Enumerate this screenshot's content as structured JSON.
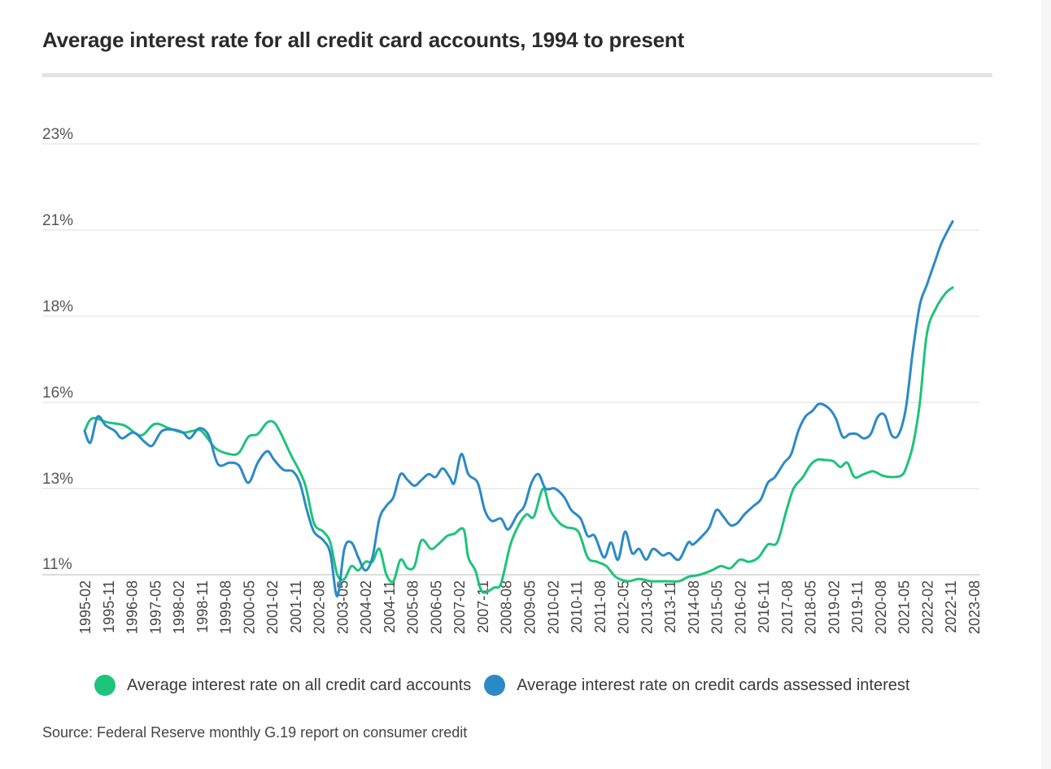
{
  "chart_data": {
    "type": "line",
    "title": "Average interest rate for all credit card accounts, 1994 to present",
    "source": "Source: Federal Reserve monthly G.19 report on consumer credit",
    "y_ticks": [
      {
        "value": 11,
        "label": "11%"
      },
      {
        "value": 13,
        "label": "13%"
      },
      {
        "value": 16,
        "label": "16%"
      },
      {
        "value": 18,
        "label": "18%"
      },
      {
        "value": 21,
        "label": "21%"
      },
      {
        "value": 23,
        "label": "23%"
      }
    ],
    "ylim": [
      11,
      23
    ],
    "x_tick_labels": [
      "1995-02",
      "1995-11",
      "1996-08",
      "1997-05",
      "1998-02",
      "1998-11",
      "1999-08",
      "2000-05",
      "2001-02",
      "2001-11",
      "2002-08",
      "2003-05",
      "2004-02",
      "2004-11",
      "2005-08",
      "2006-05",
      "2007-02",
      "2007-11",
      "2008-08",
      "2009-05",
      "2010-02",
      "2010-11",
      "2011-08",
      "2012-05",
      "2013-02",
      "2013-11",
      "2014-08",
      "2015-05",
      "2016-02",
      "2016-11",
      "2017-08",
      "2018-05",
      "2019-02",
      "2019-11",
      "2020-08",
      "2021-05",
      "2022-02",
      "2022-11",
      "2023-08"
    ],
    "grid": true,
    "legend_position": "bottom",
    "series": [
      {
        "name": "Average interest rate on all credit card accounts",
        "color": "#1dc47a",
        "values": [
          [
            0,
            15.0
          ],
          [
            0.2,
            15.35
          ],
          [
            0.45,
            15.45
          ],
          [
            1,
            15.3
          ],
          [
            1.7,
            15.2
          ],
          [
            2.4,
            14.85
          ],
          [
            3,
            15.25
          ],
          [
            3.6,
            15.1
          ],
          [
            4.2,
            14.95
          ],
          [
            4.6,
            15.0
          ],
          [
            5,
            15.0
          ],
          [
            5.6,
            14.4
          ],
          [
            6.2,
            14.2
          ],
          [
            6.6,
            14.25
          ],
          [
            7,
            14.8
          ],
          [
            7.4,
            14.9
          ],
          [
            7.8,
            15.3
          ],
          [
            8.1,
            15.3
          ],
          [
            8.4,
            14.9
          ],
          [
            8.8,
            14.2
          ],
          [
            9.4,
            13.2
          ],
          [
            9.8,
            12.2
          ],
          [
            10.2,
            12.0
          ],
          [
            10.5,
            11.75
          ],
          [
            10.8,
            11.0
          ],
          [
            11.1,
            10.9
          ],
          [
            11.4,
            11.2
          ],
          [
            11.7,
            11.1
          ],
          [
            12,
            11.3
          ],
          [
            12.3,
            11.3
          ],
          [
            12.6,
            11.6
          ],
          [
            12.9,
            11.0
          ],
          [
            13.2,
            10.85
          ],
          [
            13.5,
            11.35
          ],
          [
            13.8,
            11.15
          ],
          [
            14.1,
            11.2
          ],
          [
            14.4,
            11.8
          ],
          [
            14.8,
            11.6
          ],
          [
            15.1,
            11.7
          ],
          [
            15.5,
            11.9
          ],
          [
            15.8,
            11.95
          ],
          [
            16.2,
            12.05
          ],
          [
            16.4,
            11.4
          ],
          [
            16.7,
            11.1
          ],
          [
            17,
            10.6
          ],
          [
            17.5,
            10.7
          ],
          [
            17.8,
            10.8
          ],
          [
            18.2,
            11.7
          ],
          [
            18.6,
            12.2
          ],
          [
            18.9,
            12.4
          ],
          [
            19.2,
            12.35
          ],
          [
            19.6,
            13.0
          ],
          [
            19.9,
            12.5
          ],
          [
            20.3,
            12.2
          ],
          [
            20.6,
            12.1
          ],
          [
            21.1,
            12.0
          ],
          [
            21.5,
            11.4
          ],
          [
            21.9,
            11.3
          ],
          [
            22.3,
            11.2
          ],
          [
            22.7,
            10.95
          ],
          [
            23.2,
            10.85
          ],
          [
            23.7,
            10.9
          ],
          [
            24.2,
            10.85
          ],
          [
            24.8,
            10.85
          ],
          [
            25.4,
            10.85
          ],
          [
            25.8,
            10.95
          ],
          [
            26.3,
            11.0
          ],
          [
            26.8,
            11.1
          ],
          [
            27.2,
            11.2
          ],
          [
            27.6,
            11.15
          ],
          [
            28,
            11.35
          ],
          [
            28.4,
            11.3
          ],
          [
            28.8,
            11.4
          ],
          [
            29.2,
            11.7
          ],
          [
            29.6,
            11.75
          ],
          [
            30,
            12.5
          ],
          [
            30.3,
            13.0
          ],
          [
            30.7,
            13.4
          ],
          [
            31,
            13.8
          ],
          [
            31.3,
            14.0
          ],
          [
            31.6,
            14.0
          ],
          [
            32,
            13.95
          ],
          [
            32.3,
            13.75
          ],
          [
            32.6,
            13.9
          ],
          [
            32.9,
            13.4
          ],
          [
            33.3,
            13.5
          ],
          [
            33.7,
            13.6
          ],
          [
            34.1,
            13.45
          ],
          [
            34.5,
            13.4
          ],
          [
            34.9,
            13.45
          ],
          [
            35.1,
            13.7
          ],
          [
            35.4,
            14.5
          ],
          [
            35.7,
            16.0
          ],
          [
            36,
            17.6
          ],
          [
            36.4,
            18.3
          ],
          [
            36.8,
            18.8
          ],
          [
            37.1,
            19.0
          ]
        ]
      },
      {
        "name": "Average interest rate on credit cards assessed interest",
        "color": "#2b8ac6",
        "values": [
          [
            0,
            15.0
          ],
          [
            0.25,
            14.6
          ],
          [
            0.55,
            15.5
          ],
          [
            0.9,
            15.2
          ],
          [
            1.3,
            15.0
          ],
          [
            1.6,
            14.75
          ],
          [
            2.1,
            14.95
          ],
          [
            2.6,
            14.6
          ],
          [
            2.9,
            14.5
          ],
          [
            3.3,
            15.0
          ],
          [
            3.8,
            15.05
          ],
          [
            4.2,
            14.95
          ],
          [
            4.5,
            14.75
          ],
          [
            4.9,
            15.1
          ],
          [
            5.3,
            14.85
          ],
          [
            5.7,
            13.85
          ],
          [
            6.2,
            13.9
          ],
          [
            6.6,
            13.8
          ],
          [
            7,
            13.2
          ],
          [
            7.4,
            13.9
          ],
          [
            7.8,
            14.3
          ],
          [
            8.1,
            14.0
          ],
          [
            8.5,
            13.65
          ],
          [
            8.9,
            13.6
          ],
          [
            9.2,
            13.2
          ],
          [
            9.5,
            12.5
          ],
          [
            9.8,
            12.0
          ],
          [
            10.2,
            11.8
          ],
          [
            10.5,
            11.5
          ],
          [
            10.8,
            10.5
          ],
          [
            11.1,
            11.6
          ],
          [
            11.4,
            11.75
          ],
          [
            11.7,
            11.4
          ],
          [
            12,
            11.1
          ],
          [
            12.3,
            11.4
          ],
          [
            12.6,
            12.3
          ],
          [
            12.9,
            12.6
          ],
          [
            13.2,
            12.8
          ],
          [
            13.5,
            13.5
          ],
          [
            13.8,
            13.3
          ],
          [
            14.1,
            13.1
          ],
          [
            14.4,
            13.3
          ],
          [
            14.7,
            13.5
          ],
          [
            15,
            13.4
          ],
          [
            15.3,
            13.7
          ],
          [
            15.6,
            13.4
          ],
          [
            15.8,
            13.2
          ],
          [
            16.1,
            14.2
          ],
          [
            16.4,
            13.5
          ],
          [
            16.8,
            13.2
          ],
          [
            17.1,
            12.5
          ],
          [
            17.4,
            12.25
          ],
          [
            17.8,
            12.3
          ],
          [
            18.1,
            12.05
          ],
          [
            18.5,
            12.4
          ],
          [
            18.8,
            12.6
          ],
          [
            19.1,
            13.2
          ],
          [
            19.4,
            13.5
          ],
          [
            19.7,
            13.0
          ],
          [
            20.1,
            13.0
          ],
          [
            20.5,
            12.8
          ],
          [
            20.8,
            12.5
          ],
          [
            21.2,
            12.3
          ],
          [
            21.5,
            11.9
          ],
          [
            21.8,
            11.9
          ],
          [
            22.2,
            11.4
          ],
          [
            22.5,
            11.75
          ],
          [
            22.8,
            11.35
          ],
          [
            23.1,
            12.0
          ],
          [
            23.4,
            11.5
          ],
          [
            23.7,
            11.6
          ],
          [
            24,
            11.35
          ],
          [
            24.3,
            11.6
          ],
          [
            24.7,
            11.45
          ],
          [
            25,
            11.5
          ],
          [
            25.4,
            11.35
          ],
          [
            25.8,
            11.75
          ],
          [
            26,
            11.7
          ],
          [
            26.4,
            11.9
          ],
          [
            26.7,
            12.1
          ],
          [
            27,
            12.5
          ],
          [
            27.3,
            12.35
          ],
          [
            27.6,
            12.15
          ],
          [
            27.9,
            12.2
          ],
          [
            28.2,
            12.4
          ],
          [
            28.6,
            12.6
          ],
          [
            28.9,
            12.75
          ],
          [
            29.2,
            13.2
          ],
          [
            29.5,
            13.4
          ],
          [
            29.9,
            13.9
          ],
          [
            30.2,
            14.2
          ],
          [
            30.5,
            15.0
          ],
          [
            30.8,
            15.5
          ],
          [
            31.1,
            15.7
          ],
          [
            31.4,
            15.95
          ],
          [
            31.8,
            15.8
          ],
          [
            32.1,
            15.45
          ],
          [
            32.4,
            14.8
          ],
          [
            32.7,
            14.9
          ],
          [
            33,
            14.9
          ],
          [
            33.3,
            14.75
          ],
          [
            33.6,
            14.9
          ],
          [
            33.9,
            15.5
          ],
          [
            34.2,
            15.55
          ],
          [
            34.5,
            14.85
          ],
          [
            34.8,
            14.9
          ],
          [
            35.1,
            15.8
          ],
          [
            35.4,
            17.2
          ],
          [
            35.7,
            18.4
          ],
          [
            36,
            19.1
          ],
          [
            36.3,
            19.8
          ],
          [
            36.6,
            20.5
          ],
          [
            36.9,
            21.0
          ],
          [
            37.1,
            21.2
          ]
        ]
      }
    ]
  }
}
